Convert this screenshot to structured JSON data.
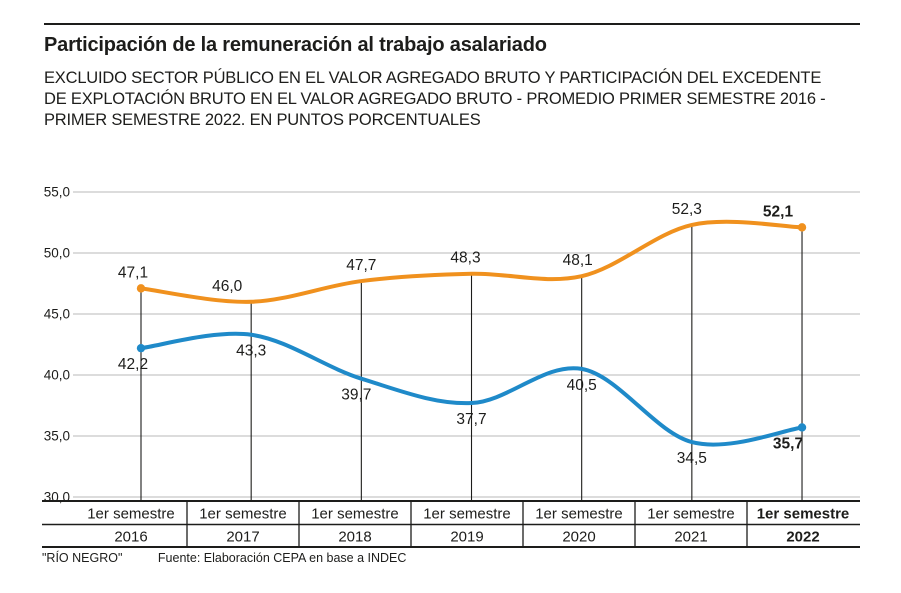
{
  "header": {
    "title": "Participación de la remuneración al trabajo asalariado",
    "subtitle_lines": [
      "EXCLUIDO SECTOR PÚBLICO EN EL VALOR AGREGADO BRUTO Y PARTICIPACIÓN DEL EXCEDENTE",
      "DE EXPLOTACIÓN BRUTO EN EL VALOR AGREGADO BRUTO - PROMEDIO PRIMER SEMESTRE 2016 -",
      "PRIMER SEMESTRE 2022. EN PUNTOS PORCENTUALES"
    ]
  },
  "footer": {
    "brand": "\"RÍO NEGRO\"",
    "source": "Fuente: Elaboración CEPA en base a INDEC"
  },
  "chart_data": {
    "type": "line",
    "title": "Participación de la remuneración al trabajo asalariado",
    "x_tick_top_label": "1er semestre",
    "x_categories": [
      "2016",
      "2017",
      "2018",
      "2019",
      "2020",
      "2021",
      "2022"
    ],
    "series": [
      {
        "name": "excedente de explotación bruto",
        "color": "#F0911E",
        "values": [
          47.1,
          46.0,
          47.7,
          48.3,
          48.1,
          52.3,
          52.1
        ]
      },
      {
        "name": "remuneración al trabajo asalariado",
        "color": "#1F8AC9",
        "values": [
          42.2,
          43.3,
          39.7,
          37.7,
          40.5,
          34.5,
          35.7
        ]
      }
    ],
    "y_axis": {
      "min": 30,
      "max": 55,
      "step": 5,
      "tick_labels": [
        "55,0",
        "50,0",
        "45,0",
        "40,0",
        "35,0",
        "30,0"
      ]
    },
    "grid": true,
    "grid_color": "#C6C6C6",
    "text_color": "#1D1D1B",
    "legend": "none",
    "number_format": "comma-decimal"
  }
}
